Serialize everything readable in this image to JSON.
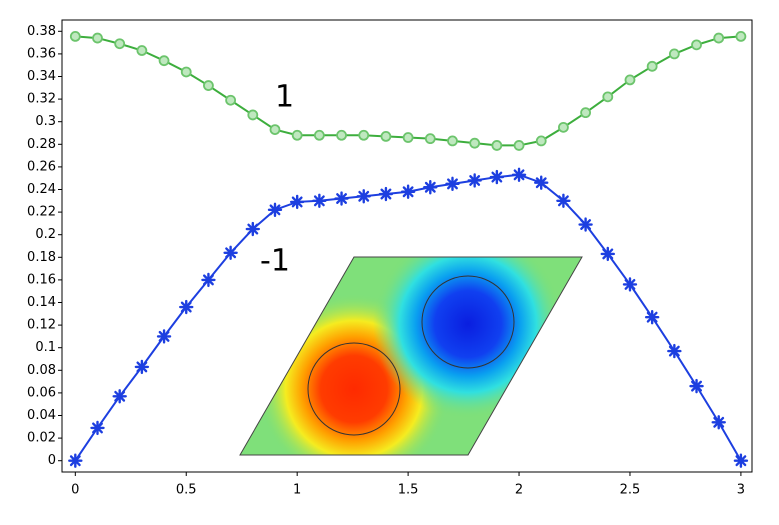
{
  "chart_data": {
    "type": "line",
    "x": [
      0,
      0.1,
      0.2,
      0.3,
      0.4,
      0.5,
      0.6,
      0.7,
      0.8,
      0.9,
      1,
      1.1,
      1.2,
      1.3,
      1.4,
      1.5,
      1.6,
      1.7,
      1.8,
      1.9,
      2,
      2.1,
      2.2,
      2.3,
      2.4,
      2.5,
      2.6,
      2.7,
      2.8,
      2.9,
      3
    ],
    "series": [
      {
        "color": "#3dae3d",
        "marker": "circle",
        "values": [
          0.3755,
          0.374,
          0.369,
          0.363,
          0.354,
          0.344,
          0.332,
          0.319,
          0.306,
          0.293,
          0.288,
          0.288,
          0.288,
          0.288,
          0.287,
          0.286,
          0.285,
          0.283,
          0.281,
          0.279,
          0.279,
          0.283,
          0.295,
          0.308,
          0.322,
          0.337,
          0.349,
          0.36,
          0.368,
          0.374,
          0.3755
        ]
      },
      {
        "color": "#1d3fe0",
        "marker": "asterisk",
        "values": [
          0,
          0.029,
          0.057,
          0.083,
          0.11,
          0.136,
          0.16,
          0.184,
          0.205,
          0.222,
          0.229,
          0.23,
          0.232,
          0.234,
          0.236,
          0.238,
          0.242,
          0.245,
          0.248,
          0.251,
          0.253,
          0.246,
          0.23,
          0.209,
          0.183,
          0.156,
          0.127,
          0.097,
          0.066,
          0.034,
          0
        ]
      }
    ],
    "annotations": [
      "1",
      "-1"
    ],
    "xlim": [
      -0.06,
      3.05
    ],
    "ylim": [
      -0.01,
      0.39
    ],
    "xticks": [
      0,
      0.5,
      1,
      1.5,
      2,
      2.5,
      3
    ],
    "yticks": [
      0,
      0.02,
      0.04,
      0.06,
      0.08,
      0.1,
      0.12,
      0.14,
      0.16,
      0.18,
      0.2,
      0.22,
      0.24,
      0.26,
      0.28,
      0.3,
      0.32,
      0.34,
      0.36,
      0.38
    ],
    "grid": false
  }
}
